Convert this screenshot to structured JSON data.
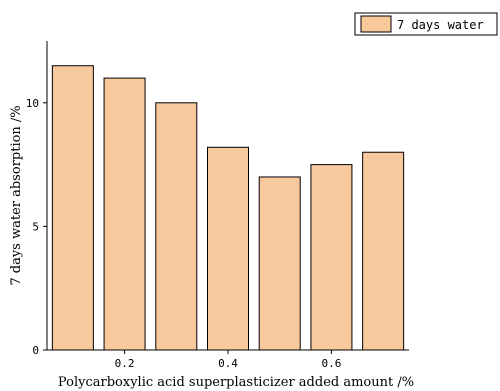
{
  "chart_data": {
    "type": "bar",
    "categories": [
      "0.1",
      "0.2",
      "0.3",
      "0.4",
      "0.5",
      "0.6",
      "0.7"
    ],
    "series": [
      {
        "name": "7 days water",
        "values": [
          11.5,
          11.0,
          10.0,
          8.2,
          7.0,
          7.5,
          8.0
        ]
      }
    ],
    "xlabel": "Polycarboxylic acid superplasticizer added amount /%",
    "ylabel": "7 days water absorption /%",
    "xlim": [
      0.05,
      0.75
    ],
    "ylim": [
      0,
      12.5
    ],
    "x_ticks": [
      0.2,
      0.4,
      0.6
    ],
    "x_tick_labels": [
      "0.2",
      "0.4",
      "0.6"
    ],
    "y_ticks": [
      0,
      5,
      10
    ],
    "y_tick_labels": [
      "0",
      "5",
      "10"
    ],
    "grid": false,
    "legend_position": "top-right",
    "bar_color": "#F9C99E",
    "bar_edge_color": "#000000"
  }
}
